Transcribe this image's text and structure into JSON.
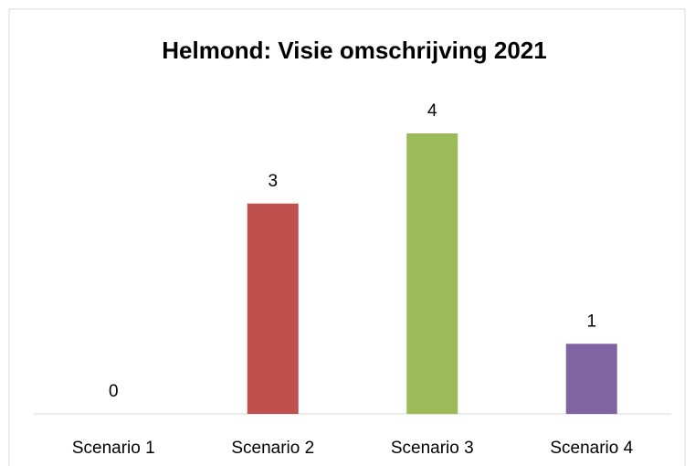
{
  "chart_data": {
    "type": "bar",
    "title": "Helmond: Visie omschrijving 2021",
    "categories": [
      "Scenario 1",
      "Scenario 2",
      "Scenario 3",
      "Scenario 4"
    ],
    "values": [
      0,
      3,
      4,
      1
    ],
    "colors": [
      "#4f81bd",
      "#c0504d",
      "#9bbb59",
      "#8064a2"
    ]
  }
}
